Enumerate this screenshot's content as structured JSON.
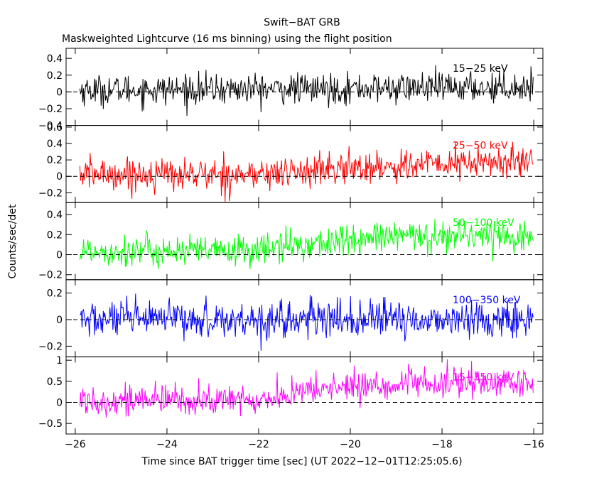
{
  "chart_data": {
    "type": "line",
    "title": "Swift−BAT GRB",
    "subtitle": "Maskweighted Lightcurve (16 ms binning) using the flight position",
    "xlabel": "Time since BAT trigger time [sec] (UT 2022−12−01T12:25:05.6)",
    "ylabel": "Counts/sec/det",
    "xlim": [
      -26.2,
      -15.8
    ],
    "x_ticks": [
      -26,
      -24,
      -22,
      -20,
      -18,
      -16
    ],
    "x_tick_labels": [
      "−26",
      "−24",
      "−22",
      "−20",
      "−18",
      "−16"
    ],
    "x_range": [
      -25.9,
      -16.0
    ],
    "bin_width": 0.016,
    "panels": [
      {
        "band": "15−25 keV",
        "color": "#000000",
        "ylim": [
          -0.4,
          0.52
        ],
        "y_ticks": [
          -0.4,
          -0.2,
          0,
          0.2,
          0.4
        ],
        "y_tick_labels": [
          "−0.4",
          "−0.2",
          "0",
          "0.2",
          "0.4"
        ],
        "trend": [
          [
            -26,
            0.02
          ],
          [
            -20,
            0.04
          ],
          [
            -16,
            0.06
          ]
        ],
        "noise": 0.09
      },
      {
        "band": "25−50 keV",
        "color": "#ff0000",
        "ylim": [
          -0.32,
          0.62
        ],
        "y_ticks": [
          -0.2,
          0,
          0.2,
          0.4,
          0.6
        ],
        "y_tick_labels": [
          "−0.2",
          "0",
          "0.2",
          "0.4",
          "0.6"
        ],
        "trend": [
          [
            -26,
            0.03
          ],
          [
            -22,
            0.02
          ],
          [
            -20,
            0.1
          ],
          [
            -18,
            0.15
          ],
          [
            -16,
            0.18
          ]
        ],
        "noise": 0.1
      },
      {
        "band": "50−100 keV",
        "color": "#00ff00",
        "ylim": [
          -0.25,
          0.52
        ],
        "y_ticks": [
          -0.2,
          0,
          0.2,
          0.4
        ],
        "y_tick_labels": [
          "−0.2",
          "0",
          "0.2",
          "0.4"
        ],
        "trend": [
          [
            -26,
            0.04
          ],
          [
            -22.5,
            0.03
          ],
          [
            -21,
            0.1
          ],
          [
            -19,
            0.18
          ],
          [
            -17,
            0.2
          ],
          [
            -16,
            0.17
          ]
        ],
        "noise": 0.08
      },
      {
        "band": "100−350 keV",
        "color": "#0000ff",
        "ylim": [
          -0.28,
          0.3
        ],
        "y_ticks": [
          -0.2,
          0,
          0.2
        ],
        "y_tick_labels": [
          "−0.2",
          "0",
          "0.2"
        ],
        "trend": [
          [
            -26,
            0.0
          ],
          [
            -16,
            0.0
          ]
        ],
        "noise": 0.07
      },
      {
        "band": "15−350 keV",
        "color": "#ff00ff",
        "ylim": [
          -0.75,
          1.08
        ],
        "y_ticks": [
          -0.5,
          0,
          0.5,
          1
        ],
        "y_tick_labels": [
          "−0.5",
          "0",
          "0.5",
          "1"
        ],
        "trend": [
          [
            -26,
            0.05
          ],
          [
            -22,
            0.05
          ],
          [
            -20.5,
            0.35
          ],
          [
            -18,
            0.45
          ],
          [
            -16,
            0.45
          ]
        ],
        "noise": 0.18
      }
    ]
  }
}
